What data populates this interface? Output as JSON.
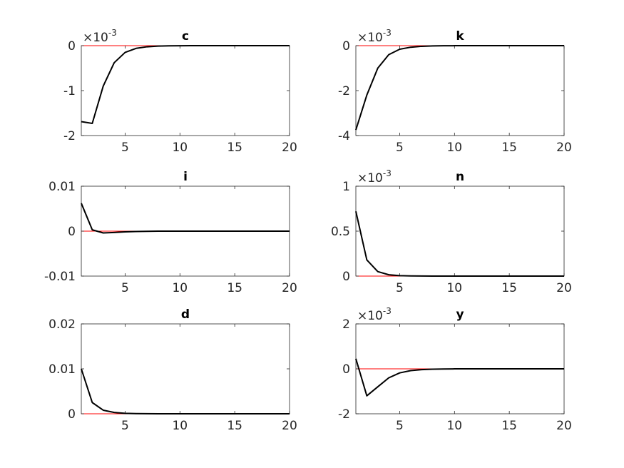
{
  "chart_data": [
    {
      "type": "line",
      "title": "c",
      "exponent": "-3",
      "xlim": [
        1,
        20
      ],
      "ylim": [
        -2,
        0
      ],
      "xticks": [
        5,
        10,
        15,
        20
      ],
      "yticks": [
        -2,
        -1,
        0
      ],
      "ytick_labels": [
        "-2",
        "-1",
        "0"
      ],
      "x": [
        1,
        2,
        3,
        4,
        5,
        6,
        7,
        8,
        9,
        10,
        11,
        12,
        13,
        14,
        15,
        16,
        17,
        18,
        19,
        20
      ],
      "series": [
        {
          "values": [
            -1.69,
            -1.73,
            -0.9,
            -0.38,
            -0.15,
            -0.06,
            -0.025,
            -0.01,
            -0.004,
            -0.002,
            -0.001,
            0,
            0,
            0,
            0,
            0,
            0,
            0,
            0,
            0
          ]
        }
      ],
      "zero_line": 0,
      "colors": {
        "series": "#000000",
        "zero": "#ff0000"
      }
    },
    {
      "type": "line",
      "title": "k",
      "exponent": "-3",
      "xlim": [
        1,
        20
      ],
      "ylim": [
        -4,
        0
      ],
      "xticks": [
        5,
        10,
        15,
        20
      ],
      "yticks": [
        -4,
        -2,
        0
      ],
      "ytick_labels": [
        "-4",
        "-2",
        "0"
      ],
      "x": [
        1,
        2,
        3,
        4,
        5,
        6,
        7,
        8,
        9,
        10,
        11,
        12,
        13,
        14,
        15,
        16,
        17,
        18,
        19,
        20
      ],
      "series": [
        {
          "values": [
            -3.75,
            -2.2,
            -1.0,
            -0.4,
            -0.16,
            -0.07,
            -0.03,
            -0.012,
            -0.005,
            -0.002,
            -0.001,
            0,
            0,
            0,
            0,
            0,
            0,
            0,
            0,
            0
          ]
        }
      ],
      "zero_line": 0,
      "colors": {
        "series": "#000000",
        "zero": "#ff0000"
      }
    },
    {
      "type": "line",
      "title": "i",
      "exponent": "",
      "xlim": [
        1,
        20
      ],
      "ylim": [
        -0.01,
        0.01
      ],
      "xticks": [
        5,
        10,
        15,
        20
      ],
      "yticks": [
        -0.01,
        0,
        0.01
      ],
      "ytick_labels": [
        "-0.01",
        "0",
        "0.01"
      ],
      "x": [
        1,
        2,
        3,
        4,
        5,
        6,
        7,
        8,
        9,
        10,
        11,
        12,
        13,
        14,
        15,
        16,
        17,
        18,
        19,
        20
      ],
      "series": [
        {
          "values": [
            0.0062,
            0.0003,
            -0.0004,
            -0.0003,
            -0.00015,
            -8e-05,
            -3e-05,
            -1e-05,
            0,
            0,
            0,
            0,
            0,
            0,
            0,
            0,
            0,
            0,
            0,
            0
          ]
        }
      ],
      "zero_line": 0,
      "colors": {
        "series": "#000000",
        "zero": "#ff0000"
      }
    },
    {
      "type": "line",
      "title": "n",
      "exponent": "-3",
      "xlim": [
        1,
        20
      ],
      "ylim": [
        0,
        1
      ],
      "xticks": [
        5,
        10,
        15,
        20
      ],
      "yticks": [
        0,
        0.5,
        1
      ],
      "ytick_labels": [
        "0",
        "0.5",
        "1"
      ],
      "x": [
        1,
        2,
        3,
        4,
        5,
        6,
        7,
        8,
        9,
        10,
        11,
        12,
        13,
        14,
        15,
        16,
        17,
        18,
        19,
        20
      ],
      "series": [
        {
          "values": [
            0.72,
            0.18,
            0.05,
            0.015,
            0.005,
            0.002,
            0.001,
            0,
            0,
            0,
            0,
            0,
            0,
            0,
            0,
            0,
            0,
            0,
            0,
            0
          ]
        }
      ],
      "zero_line": 0,
      "colors": {
        "series": "#000000",
        "zero": "#ff0000"
      }
    },
    {
      "type": "line",
      "title": "d",
      "exponent": "",
      "xlim": [
        1,
        20
      ],
      "ylim": [
        0,
        0.02
      ],
      "xticks": [
        5,
        10,
        15,
        20
      ],
      "yticks": [
        0,
        0.01,
        0.02
      ],
      "ytick_labels": [
        "0",
        "0.01",
        "0.02"
      ],
      "x": [
        1,
        2,
        3,
        4,
        5,
        6,
        7,
        8,
        9,
        10,
        11,
        12,
        13,
        14,
        15,
        16,
        17,
        18,
        19,
        20
      ],
      "series": [
        {
          "values": [
            0.01,
            0.0025,
            0.0008,
            0.0003,
            0.0001,
            4e-05,
            2e-05,
            1e-05,
            0,
            0,
            0,
            0,
            0,
            0,
            0,
            0,
            0,
            0,
            0,
            0
          ]
        }
      ],
      "zero_line": 0,
      "colors": {
        "series": "#000000",
        "zero": "#ff0000"
      }
    },
    {
      "type": "line",
      "title": "y",
      "exponent": "-3",
      "xlim": [
        1,
        20
      ],
      "ylim": [
        -2,
        2
      ],
      "xticks": [
        5,
        10,
        15,
        20
      ],
      "yticks": [
        -2,
        0,
        2
      ],
      "ytick_labels": [
        "-2",
        "0",
        "2"
      ],
      "x": [
        1,
        2,
        3,
        4,
        5,
        6,
        7,
        8,
        9,
        10,
        11,
        12,
        13,
        14,
        15,
        16,
        17,
        18,
        19,
        20
      ],
      "series": [
        {
          "values": [
            0.45,
            -1.2,
            -0.8,
            -0.4,
            -0.18,
            -0.08,
            -0.035,
            -0.015,
            -0.006,
            -0.002,
            -0.001,
            0,
            0,
            0,
            0,
            0,
            0,
            0,
            0,
            0
          ]
        }
      ],
      "zero_line": 0,
      "colors": {
        "series": "#000000",
        "zero": "#ff0000"
      }
    }
  ]
}
